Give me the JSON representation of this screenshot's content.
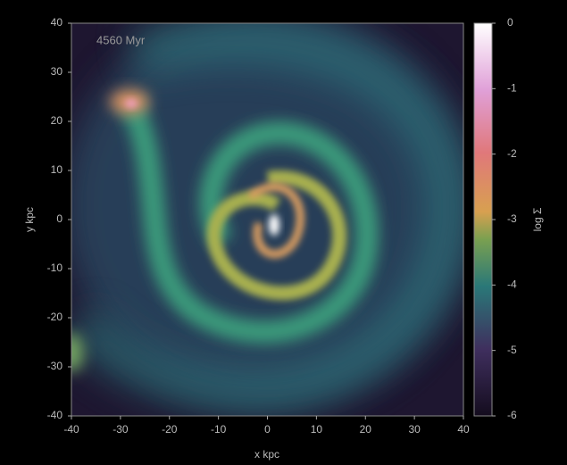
{
  "chart_data": {
    "type": "image",
    "annotation": "4560 Myr",
    "xlabel": "x kpc",
    "ylabel": "y kpc",
    "xlim": [
      -40,
      40
    ],
    "xticks": [
      -40,
      -30,
      -20,
      -10,
      0,
      10,
      20,
      30,
      40
    ],
    "ylim": [
      -40,
      40
    ],
    "yticks": [
      -40,
      -30,
      -20,
      -10,
      0,
      10,
      20,
      30,
      40
    ],
    "colorbar": {
      "label": "log Σ",
      "lim": [
        -6,
        0
      ],
      "ticks": [
        0,
        -1,
        -2,
        -3,
        -4,
        -5,
        -6
      ]
    }
  }
}
